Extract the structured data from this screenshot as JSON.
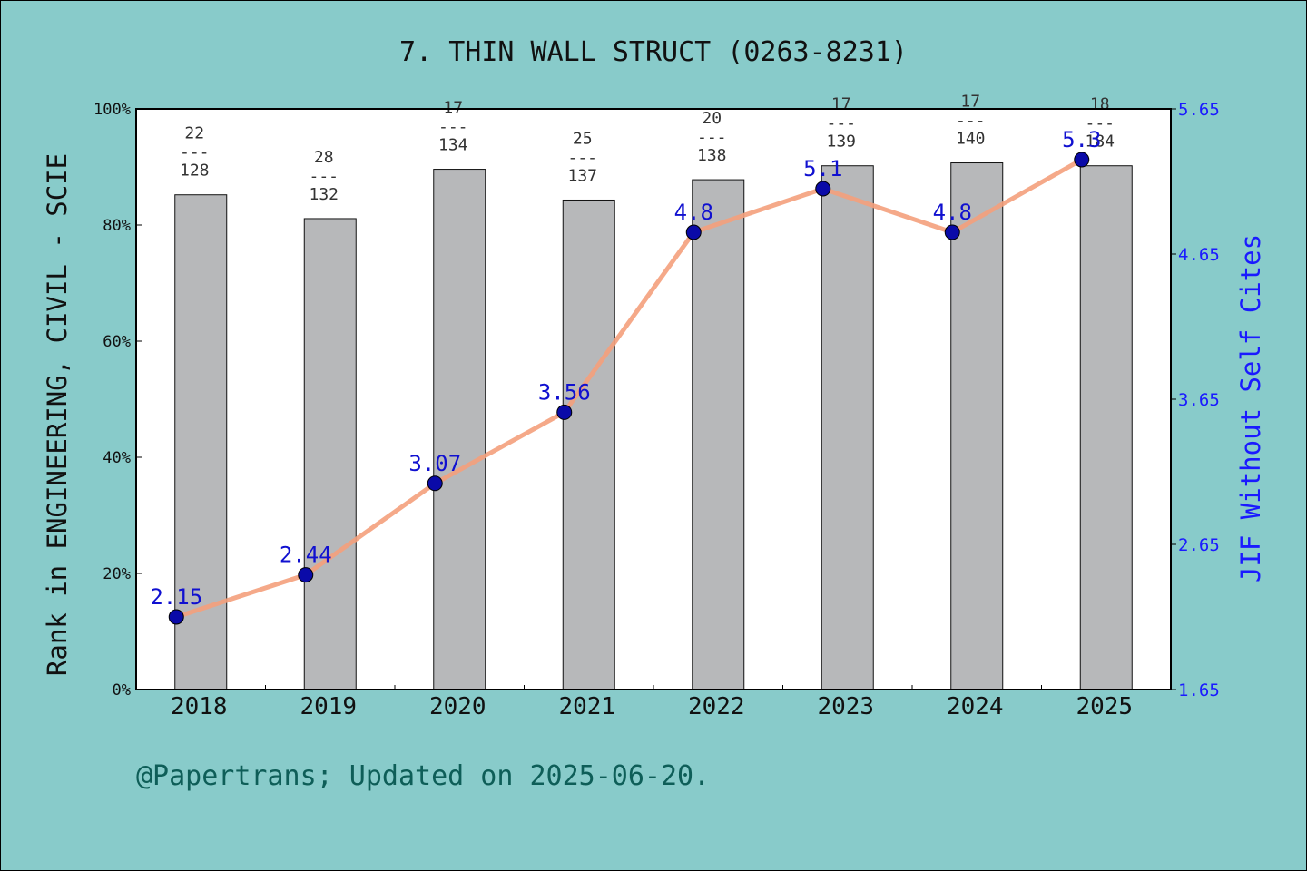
{
  "chart_data": {
    "type": "bar",
    "title": "7. THIN WALL STRUCT (0263-8231)",
    "ylabel_left": "Rank in ENGINEERING, CIVIL - SCIE",
    "ylabel_right": "JIF Without Self Cites",
    "footer": "@Papertrans; Updated on 2025-06-20.",
    "categories": [
      "2018",
      "2019",
      "2020",
      "2021",
      "2022",
      "2023",
      "2024",
      "2025"
    ],
    "left_axis": {
      "ylim": [
        0,
        100
      ],
      "ticks": [
        "0%",
        "20%",
        "40%",
        "60%",
        "80%",
        "100%"
      ],
      "tick_values": [
        0,
        20,
        40,
        60,
        80,
        100
      ]
    },
    "right_axis": {
      "ylim": [
        1.65,
        5.65
      ],
      "ticks": [
        "1.65",
        "2.65",
        "3.65",
        "4.65",
        "5.65"
      ],
      "tick_values": [
        1.65,
        2.65,
        3.65,
        4.65,
        5.65
      ]
    },
    "bars": {
      "name": "Rank percentile",
      "values": [
        85.2,
        81.1,
        89.6,
        84.3,
        87.8,
        90.2,
        90.7,
        90.2
      ],
      "rank": [
        "22",
        "28",
        "17",
        "25",
        "20",
        "17",
        "17",
        "18"
      ],
      "total": [
        "128",
        "132",
        "134",
        "137",
        "138",
        "139",
        "140",
        "184"
      ],
      "separator": "---"
    },
    "line": {
      "name": "JIF Without Self Cites",
      "values": [
        2.15,
        2.44,
        3.07,
        3.56,
        4.8,
        5.1,
        4.8,
        5.3
      ],
      "labels": [
        "2.15",
        "2.44",
        "3.07",
        "3.56",
        "4.8",
        "5.1",
        "4.8",
        "5.3"
      ]
    },
    "colors": {
      "background": "#88cbca",
      "plot_bg": "#ffffff",
      "bar": "#b7b8ba",
      "line": "#f4a07c",
      "marker": "#0a0aa8",
      "label_blue": "#1010d0",
      "right_axis": "#1a1aff",
      "footer": "#0e5e58"
    },
    "grid": false
  }
}
